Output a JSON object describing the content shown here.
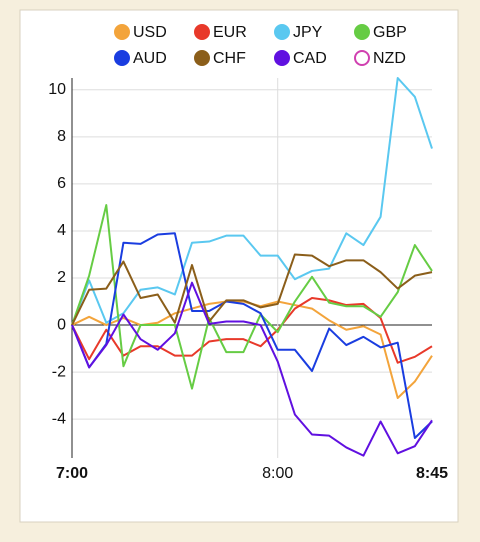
{
  "chart_data": {
    "type": "line",
    "x": [
      "7:00",
      "7:05",
      "7:10",
      "7:15",
      "7:20",
      "7:25",
      "7:30",
      "7:35",
      "7:40",
      "7:45",
      "7:50",
      "7:55",
      "8:00",
      "8:05",
      "8:10",
      "8:15",
      "8:20",
      "8:25",
      "8:30",
      "8:35",
      "8:40",
      "8:45"
    ],
    "xlim": [
      "7:00",
      "8:45"
    ],
    "xticks": [
      "7:00",
      "8:00",
      "8:45"
    ],
    "ylim": [
      -5.65,
      10.5
    ],
    "yticks": [
      -4,
      -2,
      0,
      2,
      4,
      6,
      8,
      10
    ],
    "grid": true,
    "legend": "top",
    "series": [
      {
        "name": "USD",
        "color": "#f3a43b",
        "values": [
          0,
          0.35,
          0,
          0.3,
          0,
          0.1,
          0.5,
          0.7,
          0.9,
          1.0,
          1.0,
          0.8,
          1.0,
          0.85,
          0.7,
          0.2,
          -0.2,
          -0.05,
          -0.4,
          -3.1,
          -2.4,
          -1.3
        ]
      },
      {
        "name": "EUR",
        "color": "#e8392a",
        "values": [
          0,
          -1.45,
          -0.2,
          -1.3,
          -0.9,
          -0.9,
          -1.3,
          -1.3,
          -0.7,
          -0.6,
          -0.6,
          -0.9,
          -0.2,
          0.7,
          1.15,
          1.05,
          0.85,
          0.9,
          0.3,
          -1.6,
          -1.35,
          -0.9
        ]
      },
      {
        "name": "JPY",
        "color": "#5ac8f0",
        "values": [
          0,
          1.9,
          0.1,
          0.5,
          1.5,
          1.6,
          1.3,
          3.5,
          3.55,
          3.8,
          3.8,
          2.95,
          2.95,
          1.95,
          2.3,
          2.4,
          3.9,
          3.4,
          4.6,
          10.5,
          9.7,
          7.5
        ]
      },
      {
        "name": "GBP",
        "color": "#66cc44",
        "values": [
          0,
          2.1,
          5.1,
          -1.75,
          0,
          0,
          0,
          -2.7,
          0.3,
          -1.15,
          -1.15,
          0.45,
          -0.3,
          1.0,
          2.05,
          0.95,
          0.8,
          0.8,
          0.35,
          1.4,
          3.4,
          2.3
        ]
      },
      {
        "name": "AUD",
        "color": "#1a3de0",
        "values": [
          0,
          -1.8,
          -0.8,
          3.5,
          3.45,
          3.85,
          3.9,
          0.6,
          0.6,
          1.0,
          0.9,
          0.5,
          -1.05,
          -1.05,
          -1.95,
          -0.15,
          -0.85,
          -0.5,
          -0.95,
          -0.75,
          -4.8,
          -4.1
        ]
      },
      {
        "name": "CHF",
        "color": "#8b5e1a",
        "values": [
          0,
          1.5,
          1.55,
          2.7,
          1.15,
          1.3,
          0.1,
          2.55,
          0.15,
          1.05,
          1.05,
          0.75,
          0.9,
          3.0,
          2.95,
          2.5,
          2.75,
          2.75,
          2.25,
          1.55,
          2.1,
          2.25
        ]
      },
      {
        "name": "CAD",
        "color": "#6010e0",
        "values": [
          0,
          -1.8,
          -0.85,
          0.45,
          -0.6,
          -1.05,
          -0.35,
          1.8,
          0.05,
          0.15,
          0.15,
          0,
          -1.55,
          -3.8,
          -4.65,
          -4.7,
          -5.2,
          -5.55,
          -4.1,
          -5.45,
          -5.15,
          -4.05
        ]
      },
      {
        "name": "NZD",
        "color": "#d040b0",
        "hidden": true,
        "values": [
          null,
          null,
          null,
          null,
          null,
          null,
          null,
          null,
          null,
          null,
          null,
          null,
          null,
          null,
          null,
          null,
          null,
          null,
          null,
          null,
          null,
          null
        ]
      }
    ]
  }
}
